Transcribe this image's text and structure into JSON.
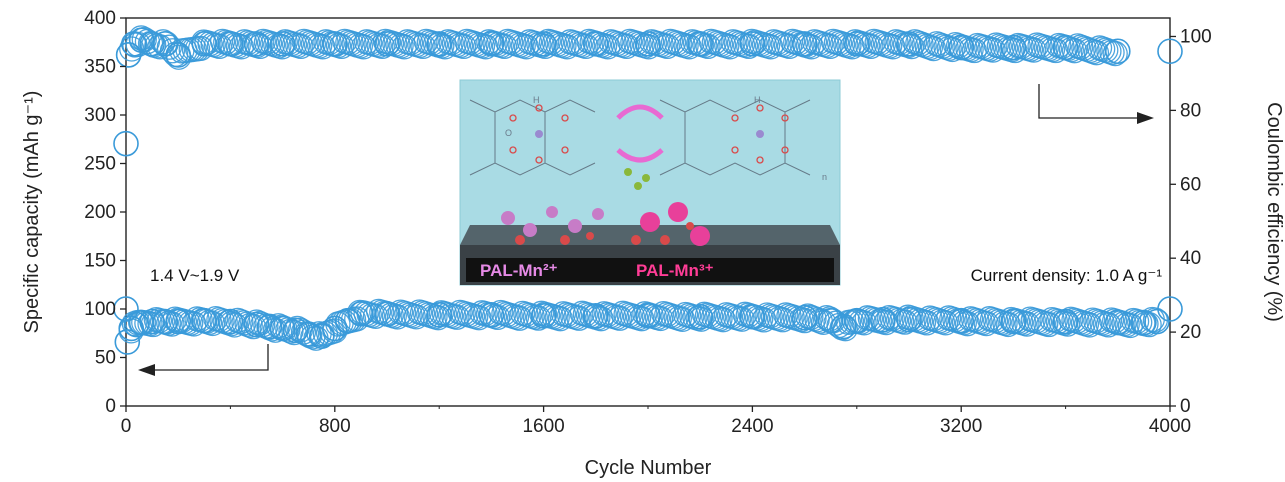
{
  "chart_data": {
    "type": "scatter",
    "xlabel": "Cycle Number",
    "ylabel_left": "Specific capacity (mAh g⁻¹)",
    "ylabel_right": "Coulombic efficiency (%)",
    "xlim": [
      0,
      4000
    ],
    "ylim_left": [
      0,
      400
    ],
    "ylim_right": [
      0,
      105
    ],
    "x_ticks": [
      0,
      800,
      1600,
      2400,
      3200,
      4000
    ],
    "y_left_ticks": [
      0,
      50,
      100,
      150,
      200,
      250,
      300,
      350,
      400
    ],
    "y_right_ticks": [
      0,
      20,
      40,
      60,
      80,
      100
    ],
    "grid": false,
    "marker_color": "#3a9ad9",
    "series": [
      {
        "axis": "left",
        "x": [
          0,
          5,
          20,
          40,
          60,
          100,
          150,
          200,
          300,
          400,
          500,
          550,
          600,
          650,
          700,
          750,
          800,
          850,
          900,
          1000,
          1200,
          1400,
          1600,
          1800,
          2000,
          2200,
          2400,
          2600,
          2700,
          2750,
          2800,
          2900,
          3000,
          3200,
          3400,
          3600,
          3800,
          3900,
          3950,
          4000
        ],
        "values": [
          100,
          66,
          80,
          84,
          86,
          87,
          87,
          87,
          88,
          87,
          84,
          82,
          80,
          78,
          74,
          72,
          80,
          88,
          95,
          95,
          94,
          94,
          93,
          93,
          93,
          92,
          92,
          91,
          88,
          82,
          88,
          89,
          89,
          88,
          87,
          87,
          86,
          86,
          87,
          100
        ]
      },
      {
        "axis": "right",
        "x": [
          0,
          10,
          30,
          60,
          100,
          150,
          200,
          300,
          400,
          500,
          600,
          800,
          1000,
          1200,
          1400,
          1600,
          1800,
          2000,
          2200,
          2400,
          2600,
          2800,
          3000,
          3200,
          3400,
          3600,
          3800,
          4000
        ],
        "values": [
          71,
          95,
          98,
          99,
          98,
          98,
          95,
          98,
          98,
          98,
          98,
          98,
          98,
          98,
          98,
          98,
          98,
          98,
          98,
          98,
          98,
          98,
          98,
          97,
          97,
          97,
          96,
          96
        ]
      }
    ],
    "annotations": [
      "1.4 V~1.9 V",
      "Current density: 1.0 A g⁻¹"
    ]
  },
  "inset": {
    "label_left": "PAL-Mn²⁺",
    "label_right": "PAL-Mn³⁺",
    "label_h": "H",
    "label_o": "O",
    "label_n": "n",
    "colors": {
      "background": "#a9dbe4",
      "surface": "#3a4146",
      "mn2": "#c77cc7",
      "mn3": "#e8409a",
      "oxygen": "#d94a4a",
      "arrow": "#e86ad2"
    }
  }
}
